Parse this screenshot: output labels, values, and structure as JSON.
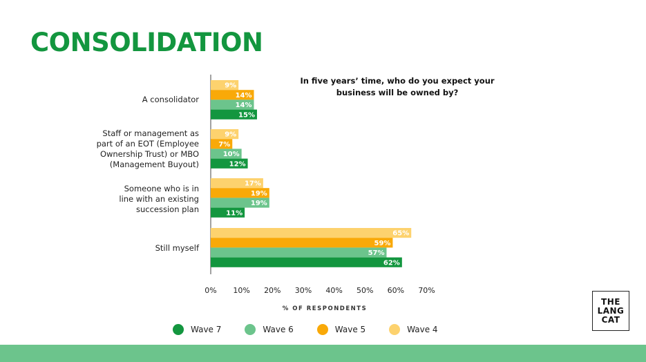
{
  "title": "CONSOLIDATION",
  "question": "In five years’ time, who do you expect your business will be owned by?",
  "chart_data": {
    "type": "bar",
    "orientation": "horizontal",
    "categories": [
      "A consolidator",
      "Staff or management as part of an EOT (Employee Ownership Trust) or MBO (Management Buyout)",
      "Someone who is in line with an existing succession plan",
      "Still myself"
    ],
    "series": [
      {
        "name": "Wave 4",
        "color": "#fdd26e",
        "values": [
          9,
          9,
          17,
          65
        ]
      },
      {
        "name": "Wave 5",
        "color": "#f9a908",
        "values": [
          14,
          7,
          19,
          59
        ]
      },
      {
        "name": "Wave 6",
        "color": "#6cc48c",
        "values": [
          14,
          10,
          19,
          57
        ]
      },
      {
        "name": "Wave 7",
        "color": "#13963f",
        "values": [
          15,
          12,
          11,
          62
        ]
      }
    ],
    "xlabel": "% OF RESPONDENTS",
    "xlim": [
      0,
      70
    ],
    "xticks": [
      "0%",
      "10%",
      "20%",
      "30%",
      "40%",
      "50%",
      "60%",
      "70%"
    ],
    "grid": false,
    "legend_placement": "bottom"
  },
  "category_lines": [
    [
      "A consolidator"
    ],
    [
      "Staff or management as",
      "part of an EOT (Employee",
      "Ownership Trust) or MBO",
      "(Management Buyout)"
    ],
    [
      "Someone who is in",
      "line with an existing",
      "succession plan"
    ],
    [
      "Still myself"
    ]
  ],
  "legend": [
    {
      "label": "Wave 7",
      "color": "#13963f"
    },
    {
      "label": "Wave 6",
      "color": "#6cc48c"
    },
    {
      "label": "Wave 5",
      "color": "#f9a908"
    },
    {
      "label": "Wave 4",
      "color": "#fdd26e"
    }
  ],
  "logo": {
    "line1": "THE",
    "line2": "LANG",
    "line3": "CAT"
  }
}
